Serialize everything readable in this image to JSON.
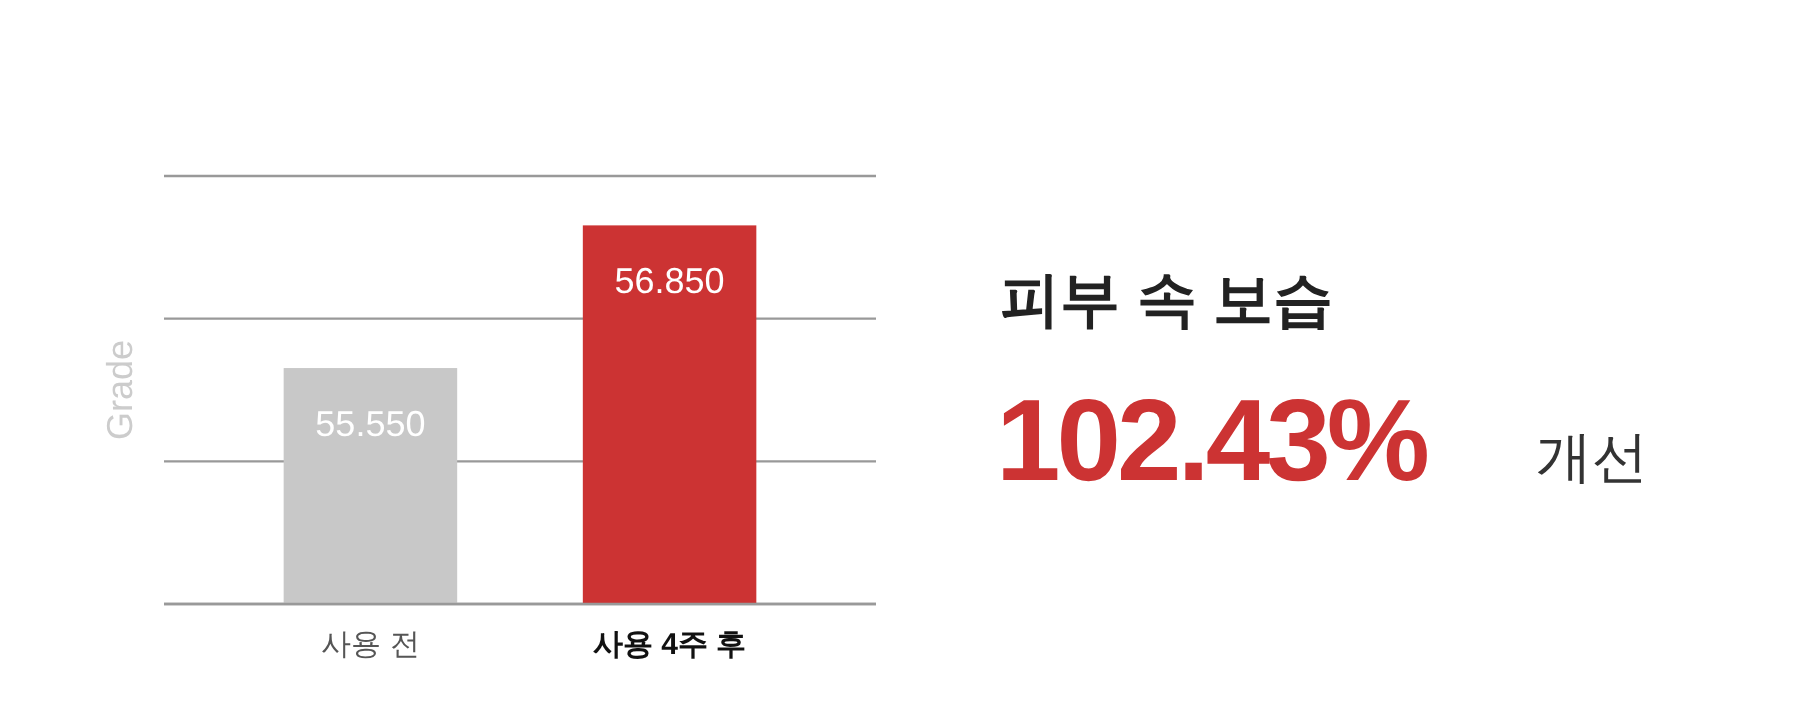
{
  "chart_data": {
    "type": "bar",
    "ylabel": "Grade",
    "categories": [
      "사용 전",
      "사용 4주 후"
    ],
    "values": [
      55.55,
      56.85
    ],
    "colors": [
      "#c8c8c8",
      "#cc3333"
    ],
    "value_labels": [
      "55.550",
      "56.850"
    ],
    "ylim": [
      53.4,
      57.3
    ],
    "yticks": [
      {
        "value": 53.4,
        "label": null
      },
      {
        "value": 54.7,
        "label": null
      },
      {
        "value": 56.0,
        "label": null
      },
      {
        "value": 57.3,
        "label": null
      }
    ],
    "grid": "y",
    "tick_labels": "x",
    "annotations": [
      "피부 속 보습",
      "102.43%",
      "개선"
    ]
  }
}
